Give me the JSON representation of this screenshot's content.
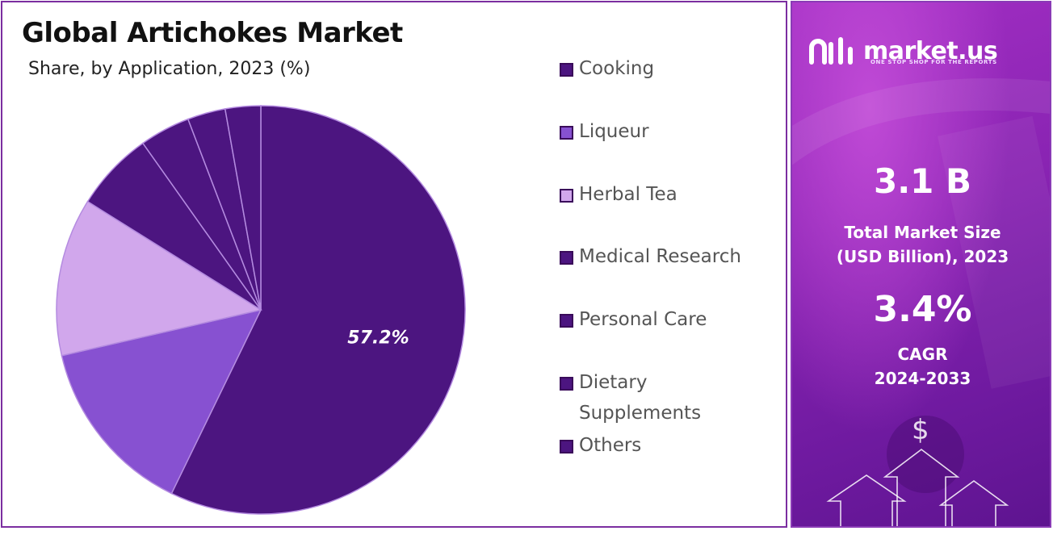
{
  "chart_data": {
    "type": "pie",
    "title": "Global Artichokes Market",
    "subtitle": "Share, by Application, 2023 (%)",
    "slices": [
      {
        "name": "Cooking",
        "value": 57.2,
        "color": "#4c1580",
        "label": "57.2%"
      },
      {
        "name": "Liqueur",
        "value": 14.2,
        "color": "#8751d1"
      },
      {
        "name": "Herbal Tea",
        "value": 12.5,
        "color": "#d1a7ec"
      },
      {
        "name": "Medical Research",
        "value": 6.3,
        "color": "#4c1580"
      },
      {
        "name": "Personal Care",
        "value": 4.0,
        "color": "#4c1580"
      },
      {
        "name": "Dietary Supplements",
        "value": 3.0,
        "color": "#4c1580"
      },
      {
        "name": "Others",
        "value": 2.8,
        "color": "#4c1580"
      }
    ],
    "legend_position": "right"
  },
  "legend": [
    {
      "label": "Cooking",
      "color": "#4c1580"
    },
    {
      "label": "Liqueur",
      "color": "#8751d1"
    },
    {
      "label": "Herbal Tea",
      "color": "#d1a7ec"
    },
    {
      "label": "Medical Research",
      "color": "#4c1580"
    },
    {
      "label": "Personal Care",
      "color": "#4c1580"
    },
    {
      "label": "Dietary Supplements",
      "color": "#4c1580"
    },
    {
      "label": "Others",
      "color": "#4c1580"
    }
  ],
  "sidebar": {
    "brand": "market.us",
    "tagline": "ONE STOP SHOP FOR THE REPORTS",
    "market_size_value": "3.1 B",
    "market_size_label_line1": "Total Market Size",
    "market_size_label_line2": "(USD Billion), 2023",
    "cagr_value": "3.4%",
    "cagr_label_line1": "CAGR",
    "cagr_label_line2": "2024-2033",
    "dollar_symbol": "$"
  }
}
